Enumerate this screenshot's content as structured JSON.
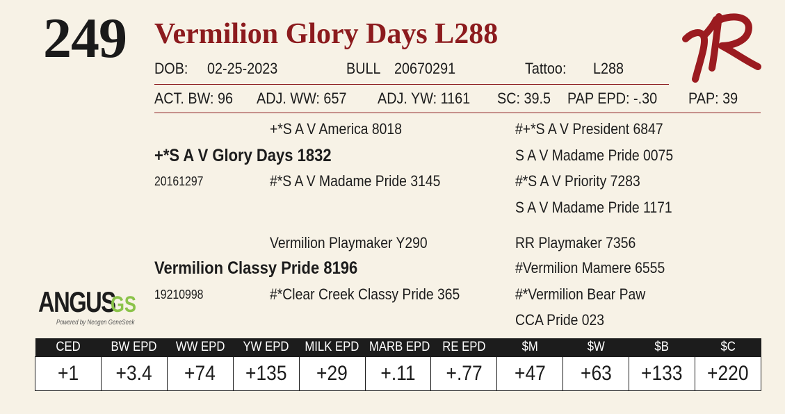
{
  "lot": {
    "number": "249",
    "name": "Vermilion Glory Days L288"
  },
  "details": {
    "dob_label": "DOB:",
    "dob": "02-25-2023",
    "sex_label": "BULL",
    "reg": "20670291",
    "tattoo_label": "Tattoo:",
    "tattoo": "L288"
  },
  "performance": {
    "act_bw": "ACT. BW: 96",
    "adj_ww": "ADJ. WW: 657",
    "adj_yw": "ADJ. YW: 1161",
    "sc": "SC: 39.5",
    "pap_epd": "PAP EPD: -.30",
    "pap": "PAP: 39"
  },
  "pedigree": {
    "sire": {
      "name": "+*S A V Glory Days 1832",
      "reg": "20161297"
    },
    "sire_sire": "+*S A V America 8018",
    "sire_dam": "#*S A V Madame Pride 3145",
    "sss": "#+*S A V President 6847",
    "ssd": "S A V Madame Pride 0075",
    "sds": "#*S A V Priority 7283",
    "sdd": "S A V Madame Pride 1171",
    "dam": {
      "name": "Vermilion Classy Pride 8196",
      "reg": "19210998"
    },
    "dam_sire": "Vermilion Playmaker Y290",
    "dam_dam": "#*Clear Creek Classy Pride 365",
    "dss": "RR Playmaker 7356",
    "dsd": "#Vermilion Mamere 6555",
    "dds": "#*Vermilion Bear Paw",
    "ddd": "CCA Pride 023"
  },
  "logos": {
    "brand_mark": "VR",
    "angus_word": "ANGUS",
    "angus_gs": "GS",
    "angus_tagline": "Powered by Neogen GeneSeek"
  },
  "colors": {
    "accent": "#8c1b1e",
    "header_bg": "#1c1c1c",
    "background": "#f7f2e6",
    "gs_green": "#8bc34a"
  },
  "epd": {
    "headers": [
      "CED",
      "BW EPD",
      "WW EPD",
      "YW EPD",
      "MILK EPD",
      "MARB EPD",
      "RE EPD",
      "$M",
      "$W",
      "$B",
      "$C"
    ],
    "values": [
      "+1",
      "+3.4",
      "+74",
      "+135",
      "+29",
      "+.11",
      "+.77",
      "+47",
      "+63",
      "+133",
      "+220"
    ]
  }
}
